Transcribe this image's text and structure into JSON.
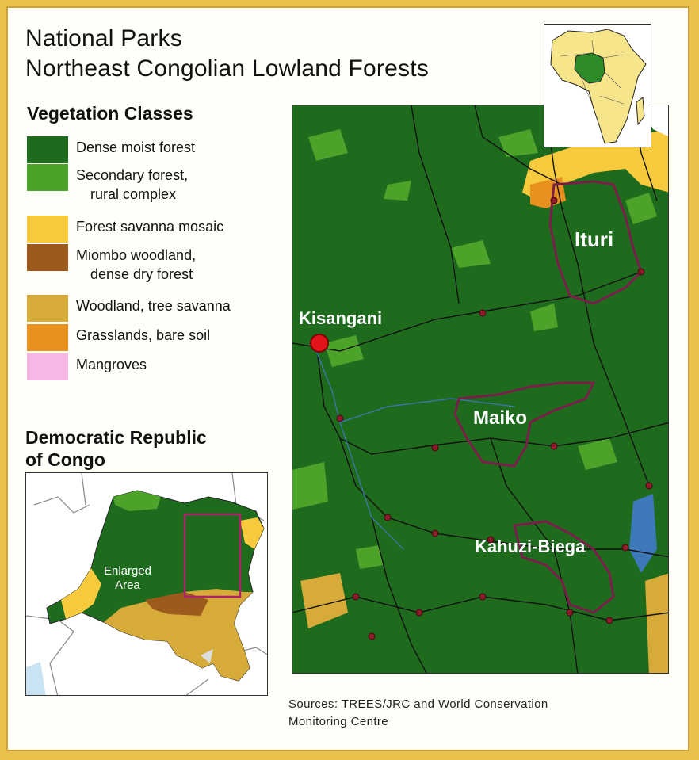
{
  "title": {
    "line1": "National Parks",
    "line2": "Northeast Congolian Lowland Forests"
  },
  "legend": {
    "heading": "Vegetation Classes",
    "items": [
      {
        "label1": "Dense moist forest",
        "label2": "",
        "color": "#1f6b1e"
      },
      {
        "label1": "Secondary forest,",
        "label2": "rural complex",
        "color": "#4da32a"
      },
      {
        "label1": "Forest  savanna mosaic",
        "label2": "",
        "color": "#f7c93d"
      },
      {
        "label1": "Miombo woodland,",
        "label2": "dense dry forest",
        "color": "#9c5a1c"
      },
      {
        "label1": "Woodland, tree savanna",
        "label2": "",
        "color": "#d6ab3a"
      },
      {
        "label1": "Grasslands, bare soil",
        "label2": "",
        "color": "#e8901e"
      },
      {
        "label1": "Mangroves",
        "label2": "",
        "color": "#f5b8e6"
      }
    ]
  },
  "overview": {
    "title_line1": "Democratic Republic",
    "title_line2": "of Congo",
    "enlarged_label1": "Enlarged",
    "enlarged_label2": "Area"
  },
  "map": {
    "city": "Kisangani",
    "parks": [
      "Ituri",
      "Maiko",
      "Kahuzi-Biega"
    ],
    "park_border_color": "#7a1f4a",
    "road_color": "#1a1a1a",
    "city_color": "#e0141a"
  },
  "sources": {
    "line1": "Sources: TREES/JRC and World Conservation",
    "line2": "Monitoring Centre"
  }
}
